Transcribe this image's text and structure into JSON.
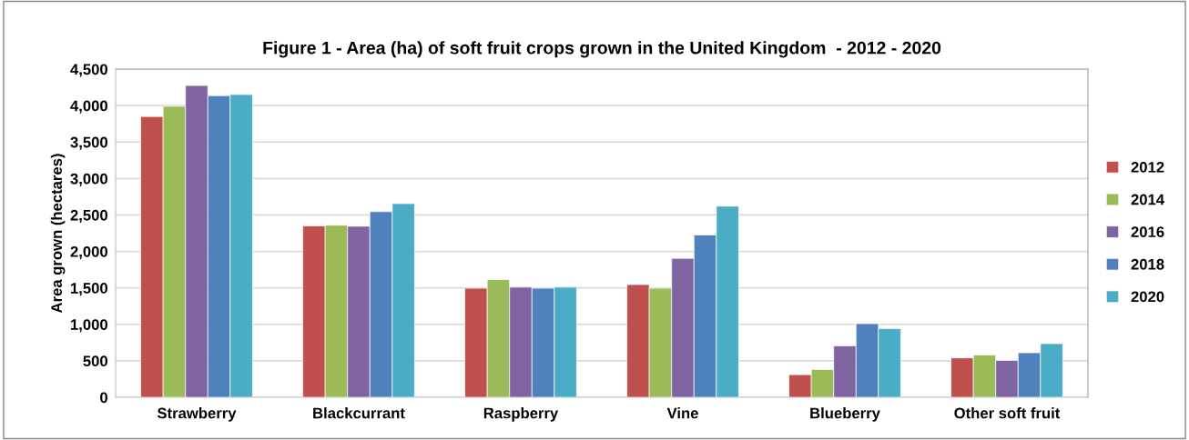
{
  "chart_data": {
    "type": "bar",
    "title": "Figure 1 - Area (ha) of soft fruit crops grown in the United Kingdom  - 2012 - 2020",
    "ylabel": "Area grown (hectares)",
    "categories": [
      "Strawberry",
      "Blackcurrant",
      "Raspberry",
      "Vine",
      "Blueberry",
      "Other soft fruit"
    ],
    "series": [
      {
        "name": "2012",
        "color": "#c0504d",
        "values": [
          3850,
          2350,
          1495,
          1545,
          310,
          540
        ]
      },
      {
        "name": "2014",
        "color": "#9bbb59",
        "values": [
          3990,
          2360,
          1615,
          1495,
          380,
          580
        ]
      },
      {
        "name": "2016",
        "color": "#8064a2",
        "values": [
          4275,
          2345,
          1510,
          1905,
          705,
          505
        ]
      },
      {
        "name": "2018",
        "color": "#4f81bd",
        "values": [
          4135,
          2545,
          1495,
          2225,
          1010,
          610
        ]
      },
      {
        "name": "2020",
        "color": "#4bacc6",
        "values": [
          4150,
          2655,
          1510,
          2620,
          940,
          735
        ]
      }
    ],
    "ylim": [
      0,
      4500
    ],
    "yticks": [
      {
        "value": 0,
        "label": "0"
      },
      {
        "value": 500,
        "label": "500"
      },
      {
        "value": 1000,
        "label": "1,000"
      },
      {
        "value": 1500,
        "label": "1,500"
      },
      {
        "value": 2000,
        "label": "2,000"
      },
      {
        "value": 2500,
        "label": "2,500"
      },
      {
        "value": 3000,
        "label": "3,000"
      },
      {
        "value": 3500,
        "label": "3,500"
      },
      {
        "value": 4000,
        "label": "4,000"
      },
      {
        "value": 4500,
        "label": "4,500"
      }
    ],
    "grid": "y",
    "legend": "right"
  }
}
